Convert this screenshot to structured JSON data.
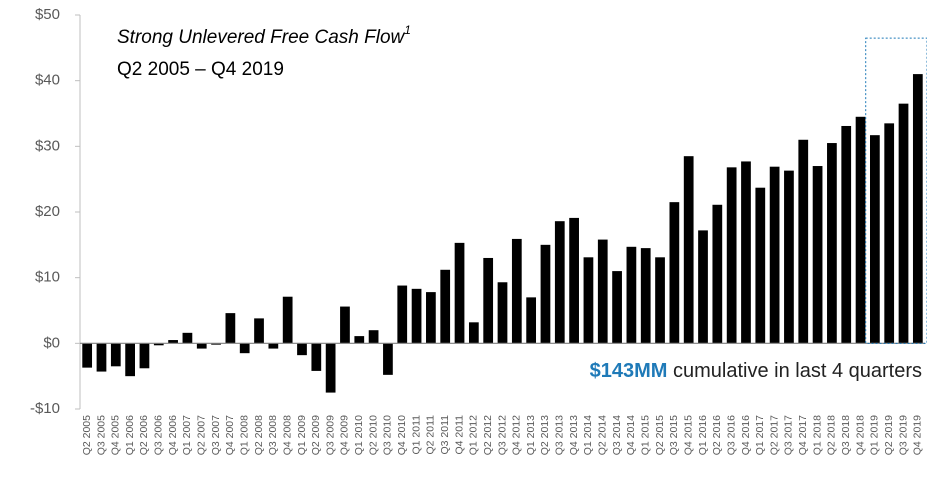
{
  "chart_data": {
    "type": "bar",
    "title": "Strong Unlevered Free Cash Flow",
    "title_footnote": "1",
    "subtitle": "Q2 2005 – Q4 2019",
    "annotation": {
      "highlight": "$143MM",
      "text": "cumulative in last 4 quarters"
    },
    "categories": [
      "Q2 2005",
      "Q3 2005",
      "Q4 2005",
      "Q1 2006",
      "Q2 2006",
      "Q3 2006",
      "Q4 2006",
      "Q1 2007",
      "Q2 2007",
      "Q3 2007",
      "Q4 2007",
      "Q1 2008",
      "Q2 2008",
      "Q3 2008",
      "Q4 2008",
      "Q1 2009",
      "Q2 2009",
      "Q3 2009",
      "Q4 2009",
      "Q1 2010",
      "Q2 2010",
      "Q3 2010",
      "Q4 2010",
      "Q1 2011",
      "Q2 2011",
      "Q3 2011",
      "Q4 2011",
      "Q1 2012",
      "Q2 2012",
      "Q3 2012",
      "Q4 2012",
      "Q1 2013",
      "Q2 2013",
      "Q3 2013",
      "Q4 2013",
      "Q1 2014",
      "Q2 2014",
      "Q3 2014",
      "Q4 2014",
      "Q1 2015",
      "Q2 2015",
      "Q3 2015",
      "Q4 2015",
      "Q1 2016",
      "Q2 2016",
      "Q3 2016",
      "Q4 2016",
      "Q1 2017",
      "Q2 2017",
      "Q3 2017",
      "Q4 2017",
      "Q1 2018",
      "Q2 2018",
      "Q3 2018",
      "Q4 2018",
      "Q1 2019",
      "Q2 2019",
      "Q3 2019",
      "Q4 2019"
    ],
    "values": [
      -3.7,
      -4.3,
      -3.5,
      -5.0,
      -3.8,
      -0.3,
      0.5,
      1.6,
      -0.8,
      -0.2,
      4.6,
      -1.5,
      3.8,
      -0.8,
      7.1,
      -1.8,
      -4.2,
      -7.5,
      5.6,
      1.1,
      2.0,
      -4.8,
      8.8,
      8.3,
      7.8,
      11.2,
      15.3,
      3.2,
      13.0,
      9.3,
      15.9,
      7.0,
      15.0,
      18.6,
      19.1,
      13.1,
      15.8,
      11.0,
      14.7,
      14.5,
      13.1,
      21.5,
      28.5,
      17.2,
      21.1,
      26.8,
      27.7,
      23.7,
      26.9,
      26.3,
      31.0,
      27.0,
      30.5,
      33.1,
      34.5,
      31.7,
      33.5,
      36.5,
      41.0
    ],
    "color": "#000000",
    "highlight_color": "#1f7ab8",
    "ylim": [
      -10,
      50
    ],
    "yticks": [
      {
        "value": -10,
        "label": "-$10"
      },
      {
        "value": 0,
        "label": "$0"
      },
      {
        "value": 10,
        "label": "$10"
      },
      {
        "value": 20,
        "label": "$20"
      },
      {
        "value": 30,
        "label": "$30"
      },
      {
        "value": 40,
        "label": "$40"
      },
      {
        "value": 50,
        "label": "$50"
      }
    ]
  }
}
